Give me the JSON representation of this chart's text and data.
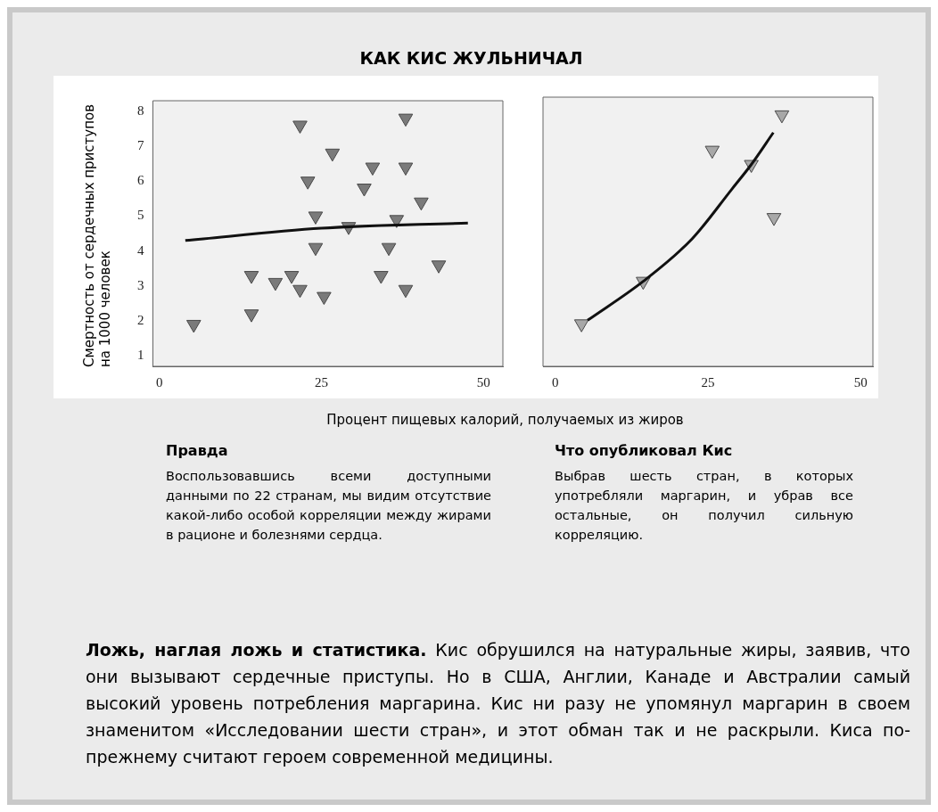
{
  "chart_data": [
    {
      "type": "scatter",
      "title": "КАК КИС ЖУЛЬНИЧАЛ",
      "ylabel": "Смертность от сердечных приступов на 1000 человек",
      "xlabel": "Процент пищевых калорий, получаемых из жиров",
      "xlim": [
        -1,
        53
      ],
      "ylim": [
        0.7,
        8.3
      ],
      "xticks": [
        0,
        25,
        50
      ],
      "yticks": [
        1,
        2,
        3,
        4,
        5,
        6,
        7,
        8
      ],
      "series": [
        {
          "type": "scatter",
          "marker": "triangle",
          "color": "#7a7a7a",
          "x": [
            5.3,
            14.2,
            14.2,
            17.9,
            20.4,
            21.7,
            21.7,
            22.9,
            24.1,
            24.1,
            25.4,
            26.7,
            29.2,
            31.6,
            32.9,
            34.2,
            35.4,
            36.6,
            38.0,
            38.0,
            38.0,
            40.4,
            43.1
          ],
          "values": [
            1.9,
            3.3,
            2.2,
            3.1,
            3.3,
            2.9,
            7.6,
            6.0,
            5.0,
            4.1,
            2.7,
            6.8,
            4.7,
            5.8,
            6.4,
            3.3,
            4.1,
            4.9,
            7.8,
            6.4,
            2.9,
            5.4,
            3.6
          ]
        },
        {
          "type": "line",
          "color": "#111111",
          "x": [
            4,
            25,
            47.6
          ],
          "values": [
            4.3,
            4.65,
            4.8
          ]
        }
      ],
      "annotations": [
        "Правда",
        "Воспользовавшись всеми доступными данными по 22 странам, мы видим отсутствие какой-либо особой корреляции между жирами в рационе и болезнями сердца."
      ]
    },
    {
      "type": "scatter",
      "xlim": [
        -2,
        52
      ],
      "ylim": [
        0.7,
        8.3
      ],
      "xticks": [
        0,
        25,
        50
      ],
      "yticks": [
        1,
        2,
        3,
        4,
        5,
        6,
        7,
        8
      ],
      "tick_labels": "x",
      "series": [
        {
          "type": "scatter",
          "marker": "triangle",
          "color": "#a8a8a8",
          "x": [
            4.3,
            14.4,
            25.7,
            32.1,
            35.8,
            37.1
          ],
          "values": [
            1.9,
            3.1,
            6.8,
            6.4,
            4.9,
            7.8
          ]
        },
        {
          "type": "line",
          "color": "#111111",
          "x": [
            5.3,
            14.4,
            22.4,
            28.9,
            32.1,
            35.7
          ],
          "values": [
            2.0,
            3.1,
            4.3,
            5.7,
            6.4,
            7.3
          ]
        }
      ],
      "annotations": [
        "Что опубликовал Кис",
        "Выбрав шесть стран, в которых употребляли маргарин, и убрав все остальные, он получил сильную корреляцию."
      ]
    },
    {
      "type": "other",
      "title": "Ложь, наглая ложь и статистика.",
      "annotations": [
        "Кис обрушился на натуральные жиры, заявив, что они вызывают сердечные приступы. Но в США, Англии, Канаде и Австралии самый высокий уровень потребления маргарина. Кис ни разу не упомянул маргарин в своем знаменитом «Исследовании шести стран», и этот обман так и не раскрыли. Киса по-прежнему считают героем современной медицины."
      ]
    }
  ]
}
